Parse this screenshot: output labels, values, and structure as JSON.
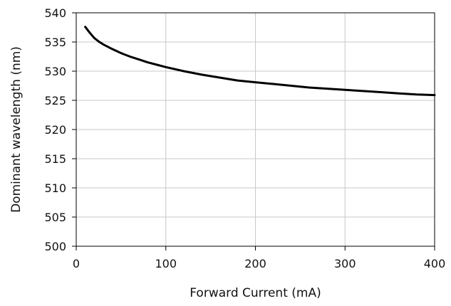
{
  "chart_data": {
    "type": "line",
    "xlabel": "Forward Current (mA)",
    "ylabel": "Dominant wavelength (nm)",
    "xlim": [
      0,
      400
    ],
    "ylim": [
      500,
      540
    ],
    "xticks": [
      0,
      100,
      200,
      300,
      400
    ],
    "yticks": [
      500,
      505,
      510,
      515,
      520,
      525,
      530,
      535,
      540
    ],
    "grid": true,
    "series": [
      {
        "color": "#000000",
        "x": [
          10,
          15,
          20,
          25,
          30,
          40,
          50,
          60,
          70,
          80,
          90,
          100,
          120,
          140,
          160,
          180,
          200,
          220,
          240,
          260,
          280,
          300,
          320,
          340,
          360,
          380,
          400
        ],
        "y": [
          537.6,
          536.6,
          535.7,
          535.1,
          534.6,
          533.8,
          533.1,
          532.5,
          532.0,
          531.5,
          531.1,
          530.7,
          530.0,
          529.4,
          528.9,
          528.4,
          528.1,
          527.8,
          527.5,
          527.2,
          527.0,
          526.8,
          526.6,
          526.4,
          526.2,
          526.0,
          525.9
        ]
      }
    ]
  }
}
